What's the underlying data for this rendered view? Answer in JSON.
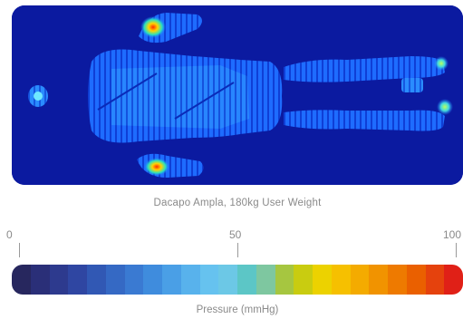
{
  "caption": "Dacapo Ampla, 180kg User Weight",
  "scale": {
    "ticks": [
      "0",
      "50",
      "100"
    ],
    "label": "Pressure (mmHg)",
    "min": 0,
    "max": 100
  },
  "colors": {
    "background": "#0b1aa0",
    "gradient": [
      "#27275e",
      "#2a2f78",
      "#2d3a8e",
      "#2f46a2",
      "#3158b4",
      "#3569c4",
      "#3a7ad2",
      "#3f8cdd",
      "#4a9fe6",
      "#58b2ec",
      "#66c2ef",
      "#6cc8e6",
      "#5cc6c6",
      "#7ec7a0",
      "#a6c640",
      "#c9cc10",
      "#ecd200",
      "#f6c000",
      "#f4ab00",
      "#f19300",
      "#ee7a00",
      "#ea6000",
      "#e5420d",
      "#e02017"
    ]
  }
}
